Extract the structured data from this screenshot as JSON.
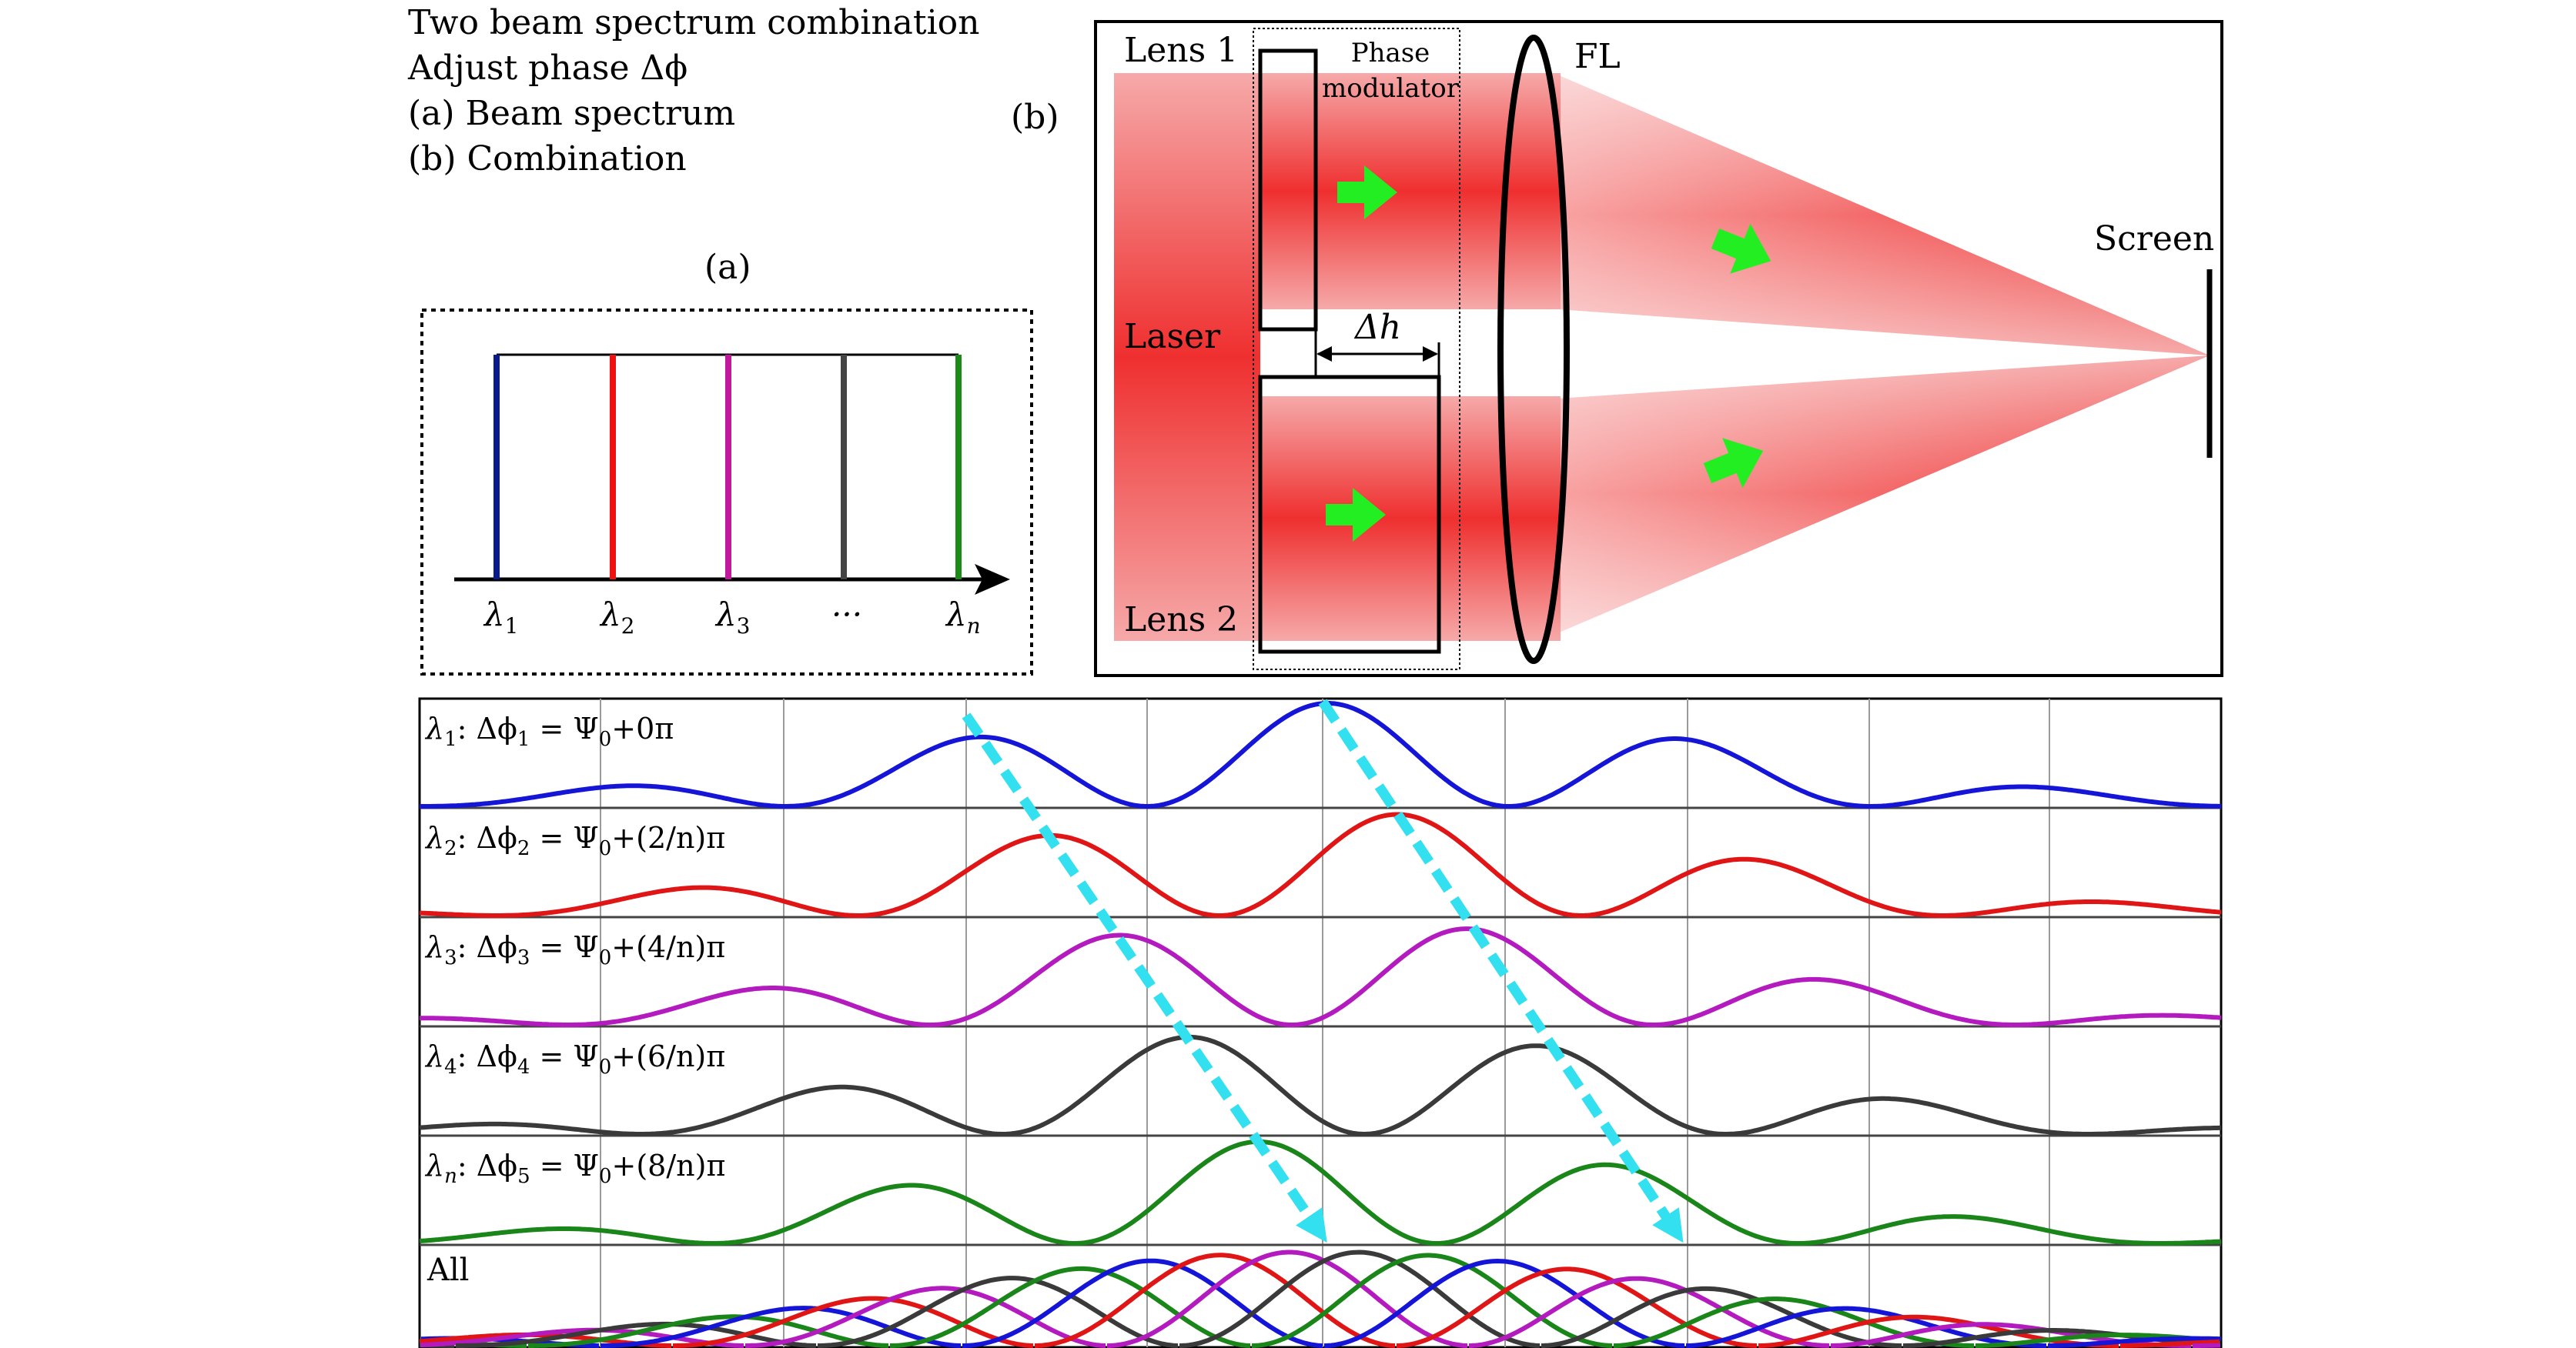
{
  "caption": {
    "lines": [
      "Two beam spectrum combination",
      "Adjust phase Δϕ",
      "(a) Beam spectrum",
      "(b) Combination"
    ]
  },
  "panel_a": {
    "label": "(a)",
    "lines": [
      {
        "name": "λ1-line",
        "color": "#0a1a8c",
        "tick": "λ",
        "sub": "1"
      },
      {
        "name": "λ2-line",
        "color": "#ee1111",
        "tick": "λ",
        "sub": "2"
      },
      {
        "name": "λ3-line",
        "color": "#c0199e",
        "tick": "λ",
        "sub": "3"
      },
      {
        "name": "λ4-line",
        "color": "#444444",
        "tick": "···",
        "sub": ""
      },
      {
        "name": "λn-line",
        "color": "#1b8a1b",
        "tick": "λ",
        "sub": "n"
      }
    ]
  },
  "panel_b": {
    "label": "(b)",
    "lens1": "Lens 1",
    "lens2": "Lens 2",
    "modulator_line1": "Phase",
    "modulator_line2": "modulator",
    "laser": "Laser",
    "fl": "FL",
    "screen": "Screen",
    "delta_h": "Δh",
    "beam_color": "#ee2222",
    "arrow_color": "#22ee22"
  },
  "waves": {
    "rows": [
      {
        "color": "#1515d8",
        "shift": 0.0,
        "label_lambda": "λ",
        "label_sub": "1",
        "label_rest": ": Δϕ",
        "label_rest_sub": "1",
        "label_eq": " = Ψ",
        "label_eq_sub": "0",
        "label_tail": "+0π"
      },
      {
        "color": "#e01515",
        "shift": 0.2,
        "label_lambda": "λ",
        "label_sub": "2",
        "label_rest": ": Δϕ",
        "label_rest_sub": "2",
        "label_eq": " = Ψ",
        "label_eq_sub": "0",
        "label_tail": "+(2/n)π"
      },
      {
        "color": "#b41bbf",
        "shift": 0.4,
        "label_lambda": "λ",
        "label_sub": "3",
        "label_rest": ": Δϕ",
        "label_rest_sub": "3",
        "label_eq": " = Ψ",
        "label_eq_sub": "0",
        "label_tail": "+(4/n)π"
      },
      {
        "color": "#3a3a3a",
        "shift": 0.6,
        "label_lambda": "λ",
        "label_sub": "4",
        "label_rest": ": Δϕ",
        "label_rest_sub": "4",
        "label_eq": " = Ψ",
        "label_eq_sub": "0",
        "label_tail": "+(6/n)π"
      },
      {
        "color": "#1a861a",
        "shift": 0.8,
        "label_lambda": "λ",
        "label_sub": "n",
        "label_rest": ": Δϕ",
        "label_rest_sub": "5",
        "label_eq": " = Ψ",
        "label_eq_sub": "0",
        "label_tail": "+(8/n)π"
      }
    ],
    "all_label": "All",
    "trend_arrow_color": "#33e0f0"
  }
}
